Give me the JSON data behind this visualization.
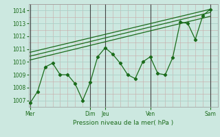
{
  "xlabel": "Pression niveau de la mer( hPa )",
  "ylim": [
    1006.5,
    1014.5
  ],
  "yticks": [
    1007,
    1008,
    1009,
    1010,
    1011,
    1012,
    1013,
    1014
  ],
  "bg_color": "#cce8e0",
  "grid_major_color": "#aad0c8",
  "grid_minor_color": "#c8a8a8",
  "line_color": "#1a6b1a",
  "dark_line_color": "#2a5a2a",
  "x_day_labels": [
    "Mer",
    "Dim",
    "Jeu",
    "Ven",
    "Sam"
  ],
  "x_day_positions": [
    0,
    4,
    5,
    8,
    12
  ],
  "xlim": [
    -0.1,
    12.5
  ],
  "series1_x": [
    0,
    0.5,
    1,
    1.5,
    2,
    2.5,
    3,
    3.5,
    4,
    4.5,
    5,
    5.5,
    6,
    6.5,
    7,
    7.5,
    8,
    8.5,
    9,
    9.5,
    10,
    10.5,
    11,
    11.5,
    12
  ],
  "series1_y": [
    1006.8,
    1007.7,
    1009.6,
    1009.9,
    1009.0,
    1009.0,
    1008.3,
    1007.0,
    1008.4,
    1010.4,
    1011.1,
    1010.6,
    1009.9,
    1009.0,
    1008.7,
    1010.0,
    1010.4,
    1009.1,
    1009.0,
    1010.35,
    1013.1,
    1013.0,
    1011.75,
    1013.6,
    1014.1
  ],
  "trend1_x": [
    0,
    12
  ],
  "trend1_y": [
    1010.15,
    1013.55
  ],
  "trend2_x": [
    0,
    12
  ],
  "trend2_y": [
    1010.45,
    1013.85
  ],
  "trend3_x": [
    0,
    12
  ],
  "trend3_y": [
    1010.75,
    1014.1
  ],
  "vline_color": "#444444",
  "spine_color": "#999999"
}
